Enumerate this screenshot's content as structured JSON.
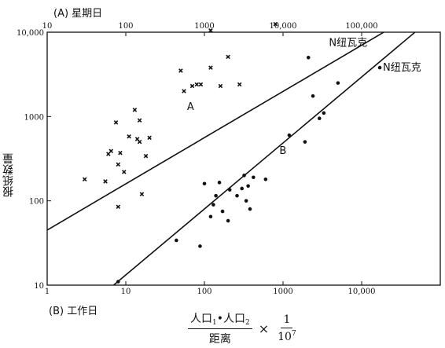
{
  "chart_data": {
    "type": "scatter",
    "title_top": "(A) 星期日",
    "title_bottom": "(B) 工作日",
    "ylabel": "报纸数量",
    "xlabel": {
      "numerator_parts": [
        "人口",
        "1",
        "•人口",
        "2"
      ],
      "denominator": "距离",
      "times": "×",
      "fraction2_num": "1",
      "fraction2_den_base": "10",
      "fraction2_den_exp": "7"
    },
    "x_scale": "log",
    "y_scale": "log",
    "top_axis": {
      "xlim": [
        10,
        1000000
      ],
      "ticks": [
        10,
        100,
        1000,
        10000,
        100000
      ],
      "tick_labels": [
        "10",
        "100",
        "1000",
        "10,000",
        "100,000"
      ]
    },
    "bottom_axis": {
      "xlim": [
        1,
        100000
      ],
      "ticks": [
        1,
        10,
        100,
        1000,
        10000
      ],
      "tick_labels": [
        "1",
        "10",
        "100",
        "1000",
        "10,000"
      ]
    },
    "ylim": [
      10,
      10000
    ],
    "y_ticks": [
      10,
      100,
      1000,
      10000
    ],
    "y_tick_labels": [
      "10",
      "100",
      "1000",
      "10,000"
    ],
    "grid": false,
    "annotations": [
      {
        "text": "N纽瓦克",
        "series": "A",
        "x": 35000,
        "y": 7500
      },
      {
        "text": "N纽瓦克",
        "series": "B",
        "x": 17000,
        "y": 3800
      }
    ],
    "lines": [
      {
        "name": "A",
        "axis": "top",
        "x": [
          10,
          400000
        ],
        "y": [
          45,
          15000
        ],
        "label_x": 600,
        "label_y": 1200
      },
      {
        "name": "B",
        "axis": "bottom",
        "x": [
          7,
          80000
        ],
        "y": [
          10,
          15000
        ],
        "label_x": 900,
        "label_y": 360
      }
    ],
    "series": [
      {
        "name": "A",
        "axis": "top",
        "marker": "x",
        "points": [
          [
            30,
            180
          ],
          [
            55,
            170
          ],
          [
            60,
            360
          ],
          [
            65,
            390
          ],
          [
            75,
            850
          ],
          [
            80,
            270
          ],
          [
            80,
            85
          ],
          [
            85,
            370
          ],
          [
            95,
            220
          ],
          [
            110,
            580
          ],
          [
            130,
            1200
          ],
          [
            140,
            540
          ],
          [
            150,
            900
          ],
          [
            150,
            500
          ],
          [
            160,
            120
          ],
          [
            180,
            340
          ],
          [
            200,
            560
          ],
          [
            500,
            3500
          ],
          [
            550,
            2000
          ],
          [
            700,
            2300
          ],
          [
            800,
            2400
          ],
          [
            900,
            2400
          ],
          [
            1200,
            10500
          ],
          [
            1200,
            3800
          ],
          [
            1600,
            2300
          ],
          [
            2000,
            5100
          ],
          [
            2800,
            2400
          ],
          [
            8000,
            12500
          ]
        ]
      },
      {
        "name": "B",
        "axis": "bottom",
        "marker": "dot",
        "points": [
          [
            8,
            11
          ],
          [
            44,
            34
          ],
          [
            88,
            29
          ],
          [
            100,
            160
          ],
          [
            120,
            65
          ],
          [
            130,
            90
          ],
          [
            140,
            115
          ],
          [
            155,
            165
          ],
          [
            170,
            75
          ],
          [
            200,
            58
          ],
          [
            210,
            135
          ],
          [
            260,
            115
          ],
          [
            300,
            140
          ],
          [
            320,
            200
          ],
          [
            340,
            100
          ],
          [
            360,
            150
          ],
          [
            380,
            80
          ],
          [
            420,
            190
          ],
          [
            600,
            180
          ],
          [
            1200,
            600
          ],
          [
            1900,
            500
          ],
          [
            2100,
            5000
          ],
          [
            2400,
            1750
          ],
          [
            2900,
            950
          ],
          [
            3300,
            1100
          ],
          [
            5000,
            2500
          ],
          [
            17000,
            3800
          ]
        ]
      }
    ]
  }
}
